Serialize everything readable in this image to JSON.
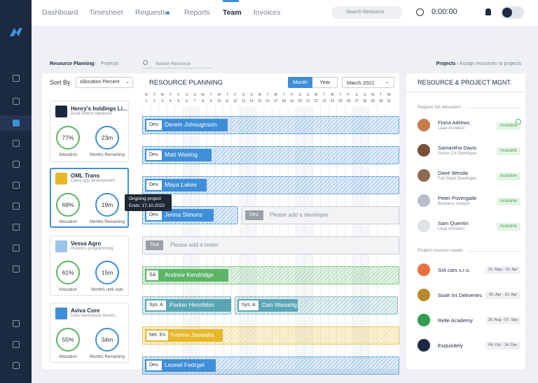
{
  "nav": {
    "items": [
      "Dashboard",
      "Timesheet",
      "Requests",
      "Reports",
      "Team",
      "Invoices"
    ],
    "search": "Search Resource",
    "timer": "0:00:00"
  },
  "breadcrumb": {
    "left": [
      "Resource Planning",
      "Projects"
    ],
    "search": "Search Resource",
    "right": [
      "Projects",
      "Assign resources to projects"
    ]
  },
  "toolbar": {
    "sort_label": "Sort By",
    "sort_value": "Allocation Percent",
    "title": "RESOURCE PLANNING",
    "views": [
      "Month",
      "Year"
    ],
    "month": "March 2021"
  },
  "projects": [
    {
      "name": "Henry's holdings Li...",
      "desc": "Build fintech database",
      "allocation": "77%",
      "allocation_label": "Allocation",
      "months": "23m",
      "months_label": "Months Remaining"
    },
    {
      "name": "OML Trans",
      "desc": "Client app development",
      "allocation": "69%",
      "allocation_label": "Allocation",
      "months": "19m",
      "months_label": "Months Remaining"
    },
    {
      "name": "Vessa Agro",
      "desc": "Robotics programming",
      "allocation": "61%",
      "allocation_label": "Allocation",
      "months": "15m",
      "months_label": "Months until start"
    },
    {
      "name": "Aviva Core",
      "desc": "Data warehouse develo...",
      "allocation": "55%",
      "allocation_label": "Allocation",
      "months": "34m",
      "months_label": "Months Remaining"
    }
  ],
  "tooltip": {
    "title": "Ongoing project",
    "ends": "Ends: 17.10.2022"
  },
  "weekdays": [
    "M",
    "T",
    "W",
    "T",
    "F",
    "S",
    "S",
    "M",
    "T",
    "W",
    "T",
    "F",
    "S",
    "S",
    "M",
    "T",
    "W",
    "T",
    "F",
    "S",
    "S",
    "M",
    "T",
    "W",
    "T",
    "F",
    "S",
    "S",
    "M",
    "T",
    "W"
  ],
  "days": [
    "1",
    "2",
    "3",
    "4",
    "5",
    "6",
    "7",
    "8",
    "9",
    "10",
    "11",
    "12",
    "13",
    "14",
    "15",
    "16",
    "17",
    "18",
    "19",
    "20",
    "21",
    "22",
    "23",
    "24",
    "25",
    "26",
    "27",
    "28",
    "29",
    "30",
    "31"
  ],
  "rows": [
    {
      "color": "#3f8fd8",
      "segments": [
        {
          "role": "Dev.",
          "name": "Derem Johougnson"
        }
      ]
    },
    {
      "color": "#3f8fd8",
      "segments": [
        {
          "role": "Dev.",
          "name": "Matt Waslog"
        }
      ]
    },
    {
      "color": "#3f8fd8",
      "segments": [
        {
          "role": "Dev.",
          "name": "Maya Lakes"
        }
      ]
    },
    {
      "color": "#3f8fd8",
      "segments": [
        {
          "role": "Dev.",
          "name": "Jenna Simons"
        },
        {
          "role": "Dev.",
          "placeholder": "Please add a developer"
        }
      ]
    },
    {
      "color": "#9aa0a8",
      "segments": [
        {
          "role": "Test",
          "placeholder": "Please add a tester"
        }
      ]
    },
    {
      "color": "#5cb565",
      "segments": [
        {
          "role": "SA",
          "name": "Andrew Kendridge"
        }
      ]
    },
    {
      "color": "#5aa6b6",
      "segments": [
        {
          "role": "Sys. A",
          "name": "Parker Henribbin"
        },
        {
          "role": "Sys. A",
          "name": "Dan Waiselig"
        }
      ]
    },
    {
      "color": "#e6b82a",
      "segments": [
        {
          "role": "Net. En",
          "name": "Yvonne Jeswalts"
        }
      ]
    },
    {
      "color": "#3f8fd8",
      "segments": [
        {
          "role": "Dev.",
          "name": "Leonel Fedrgel"
        }
      ]
    }
  ],
  "panel": {
    "title": "RESOURCE & PROJECT MGNT.",
    "people_heading": "Require full allocation",
    "people": [
      {
        "name": "Fiona Adrews",
        "role": "Lead Architect",
        "status": "Available"
      },
      {
        "name": "Samantha Davis",
        "role": "Senior C# Developer",
        "status": "Available"
      },
      {
        "name": "Dave Wesda",
        "role": "Full Stack Developer",
        "status": "Available"
      },
      {
        "name": "Peter Povergaile",
        "role": "Business Analyst",
        "status": "Available"
      },
      {
        "name": "Sam Quentin",
        "role": "Lead Architect",
        "status": "Available"
      }
    ],
    "needs_heading": "Project resouce needs",
    "needs": [
      {
        "name": "SIA cars s.r.o.",
        "dates": "21. May - 10. Apr"
      },
      {
        "name": "Soah Int Deliveries",
        "dates": "06. Apr - 21. Apr"
      },
      {
        "name": "Relle Academy",
        "dates": "30. Aug - 07. Sep"
      },
      {
        "name": "Exquisitely",
        "dates": "04. Oct - 14. Dec"
      }
    ]
  }
}
